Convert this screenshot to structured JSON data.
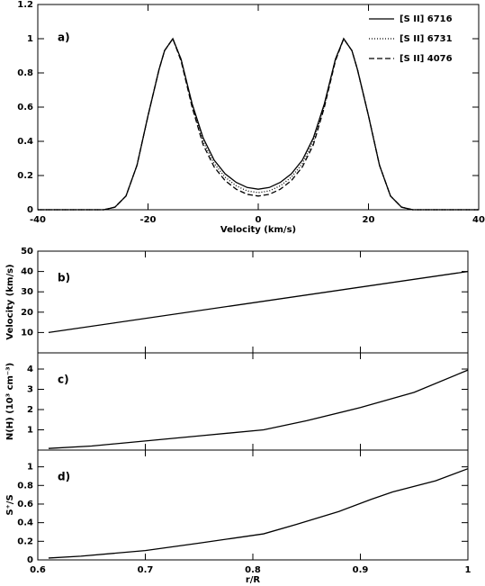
{
  "chart_data": [
    {
      "type": "line",
      "panel_label": "a)",
      "xlabel": "Velocity (km/s)",
      "x": [
        -40,
        -30,
        -28,
        -26,
        -24,
        -22,
        -20,
        -18,
        -17,
        -15.5,
        -14,
        -12,
        -10,
        -8,
        -6,
        -4,
        -2,
        0,
        2,
        4,
        6,
        8,
        10,
        12,
        14,
        15.5,
        17,
        18,
        20,
        22,
        24,
        26,
        28,
        30,
        40
      ],
      "series": [
        {
          "name": "[S II] 6716",
          "color": "#000000",
          "dash": "solid",
          "values": [
            0,
            0,
            0,
            0.015,
            0.08,
            0.26,
            0.55,
            0.82,
            0.93,
            1.0,
            0.88,
            0.62,
            0.42,
            0.29,
            0.21,
            0.16,
            0.13,
            0.12,
            0.13,
            0.16,
            0.21,
            0.29,
            0.42,
            0.62,
            0.88,
            1.0,
            0.93,
            0.82,
            0.55,
            0.26,
            0.08,
            0.015,
            0,
            0,
            0
          ]
        },
        {
          "name": "[S II] 6731",
          "color": "#000000",
          "dash": "dotted",
          "values": [
            0,
            0,
            0,
            0.015,
            0.08,
            0.26,
            0.55,
            0.82,
            0.93,
            1.0,
            0.88,
            0.61,
            0.4,
            0.27,
            0.19,
            0.14,
            0.11,
            0.1,
            0.11,
            0.14,
            0.19,
            0.27,
            0.4,
            0.61,
            0.88,
            1.0,
            0.93,
            0.82,
            0.55,
            0.26,
            0.08,
            0.015,
            0,
            0,
            0
          ]
        },
        {
          "name": "[S II] 4076",
          "color": "#000000",
          "dash": "dashed",
          "values": [
            0,
            0,
            0,
            0.015,
            0.08,
            0.26,
            0.55,
            0.82,
            0.93,
            1.0,
            0.87,
            0.6,
            0.38,
            0.25,
            0.17,
            0.12,
            0.09,
            0.08,
            0.09,
            0.12,
            0.17,
            0.25,
            0.38,
            0.6,
            0.87,
            1.0,
            0.93,
            0.82,
            0.55,
            0.26,
            0.08,
            0.015,
            0,
            0,
            0
          ]
        }
      ],
      "xlim": [
        -40,
        40
      ],
      "xticks": [
        -40,
        -20,
        0,
        20,
        40
      ],
      "ylim": [
        0,
        1.2
      ],
      "yticks": [
        0,
        0.2,
        0.4,
        0.6,
        0.8,
        1,
        1.2
      ],
      "legend": "upper right"
    },
    {
      "type": "line",
      "panel_label": "b)",
      "ylabel": "Velocity (km/s)",
      "color": "#000000",
      "x": [
        0.61,
        1.0
      ],
      "values": [
        10,
        40
      ],
      "xlim": [
        0.6,
        1
      ],
      "ylim": [
        0,
        50
      ],
      "yticks": [
        10,
        20,
        30,
        40,
        50
      ]
    },
    {
      "type": "line",
      "panel_label": "c)",
      "ylabel": "N(H) (10³ cm⁻³)",
      "color": "#000000",
      "x": [
        0.61,
        0.65,
        0.7,
        0.75,
        0.81,
        0.85,
        0.9,
        0.95,
        1.0
      ],
      "values": [
        0.08,
        0.2,
        0.45,
        0.7,
        1.0,
        1.45,
        2.1,
        2.85,
        3.95
      ],
      "xlim": [
        0.6,
        1
      ],
      "ylim": [
        0,
        4.8
      ],
      "yticks": [
        1,
        2,
        3,
        4
      ]
    },
    {
      "type": "line",
      "panel_label": "d)",
      "ylabel": "S⁺/S",
      "xlabel": "r/R",
      "color": "#000000",
      "x": [
        0.61,
        0.64,
        0.7,
        0.75,
        0.81,
        0.84,
        0.88,
        0.91,
        0.93,
        0.97,
        1.0
      ],
      "values": [
        0.02,
        0.04,
        0.1,
        0.18,
        0.28,
        0.38,
        0.52,
        0.65,
        0.73,
        0.85,
        0.98
      ],
      "xlim": [
        0.6,
        1
      ],
      "xticks": [
        0.6,
        0.7,
        0.8,
        0.9,
        1
      ],
      "ylim": [
        0,
        1.18
      ],
      "yticks": [
        0,
        0.2,
        0.4,
        0.6,
        0.8,
        1
      ]
    }
  ]
}
